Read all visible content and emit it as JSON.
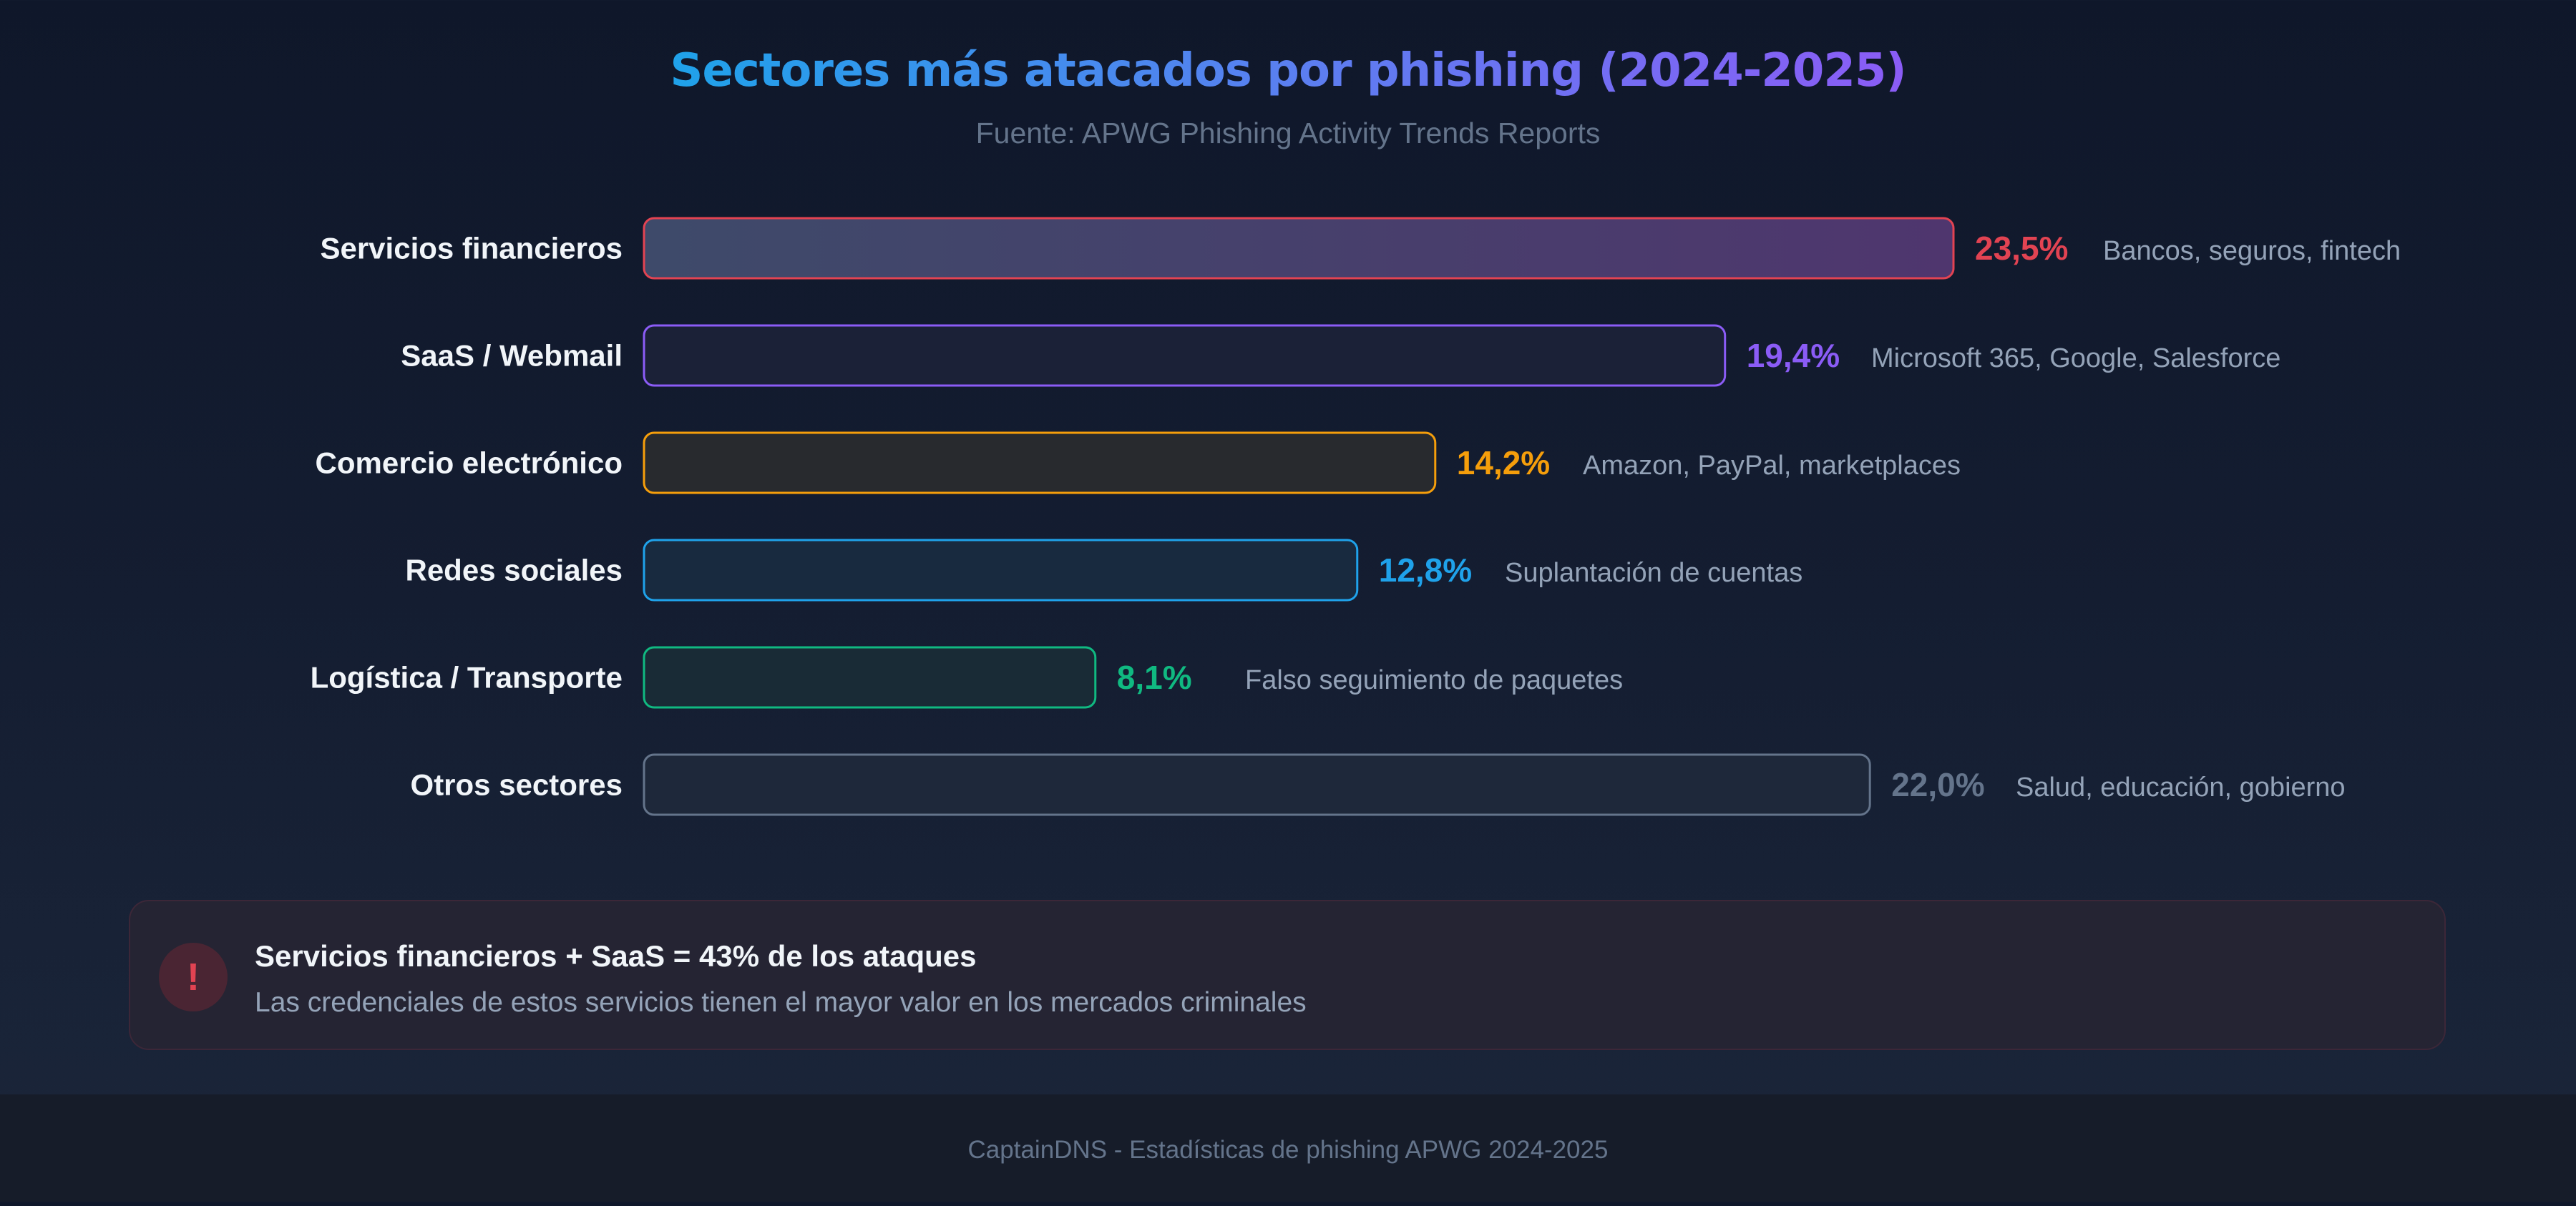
{
  "chart_data": {
    "type": "bar",
    "orientation": "horizontal",
    "title": "Sectores más atacados por phishing (2024-2025)",
    "subtitle": "Fuente: APWG Phishing Activity Trends Reports",
    "categories": [
      "Servicios financieros",
      "SaaS / Webmail",
      "Comercio electrónico",
      "Redes sociales",
      "Logística / Transporte",
      "Otros sectores"
    ],
    "values": [
      23.5,
      19.4,
      14.2,
      12.8,
      8.1,
      22.0
    ],
    "value_labels": [
      "23,5%",
      "19,4%",
      "14,2%",
      "12,8%",
      "8,1%",
      "22,0%"
    ],
    "descriptions": [
      "Bancos, seguros, fintech",
      "Microsoft 365, Google, Salesforce",
      "Amazon, PayPal, marketplaces",
      "Suplantación de cuentas",
      "Falso seguimiento de paquetes",
      "Salud, educación, gobierno"
    ],
    "colors": [
      "#e24352",
      "#8b5cf6",
      "#f59e0b",
      "#1fa2ea",
      "#10b981",
      "#64748b"
    ],
    "fills": [
      "#473d6a",
      "#1b2137",
      "#282a2e",
      "#182a3f",
      "#192b36",
      "#1e283a"
    ],
    "grid": false
  },
  "callout": {
    "icon": "!",
    "title": "Servicios financieros + SaaS = 43% de los ataques",
    "text": "Las credenciales de estos servicios tienen el mayor valor en los mercados criminales"
  },
  "footer": "CaptainDNS - Estadísticas de phishing APWG 2024-2025"
}
